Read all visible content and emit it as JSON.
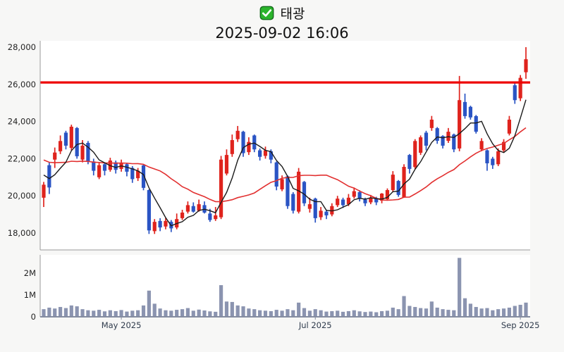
{
  "title": {
    "checkbox_icon": "white-check-on-green",
    "checkbox_green": "#2bb42c",
    "stock_name": "태광",
    "datetime": "2025-09-02 16:06"
  },
  "chart_data": {
    "type": "candlestick",
    "panels": [
      "price",
      "volume"
    ],
    "grid": "off",
    "price_axis": {
      "ticks": [
        28000,
        26000,
        24000,
        22000,
        20000,
        18000
      ],
      "range": [
        17500,
        28200
      ]
    },
    "volume_axis": {
      "ticks": [
        {
          "label": "2M",
          "value": 2000000
        },
        {
          "label": "1M",
          "value": 1000000
        },
        {
          "label": "0",
          "value": 0
        }
      ]
    },
    "x_ticks": [
      {
        "label": "May 2025",
        "index": 14
      },
      {
        "label": "Jul 2025",
        "index": 49
      },
      {
        "label": "Sep 2025",
        "index": 86
      }
    ],
    "resistance_line": {
      "value": 26100,
      "color": "#ee0000"
    },
    "moving_averages": {
      "short": {
        "window": 5,
        "color": "#1a1a1a"
      },
      "long": {
        "window": 20,
        "color": "#e23030"
      },
      "prior_closes": [
        23000,
        22900,
        22800,
        22700,
        22600,
        22500,
        22400,
        22300,
        22200,
        22100,
        22000,
        21900,
        21800,
        21700,
        21600,
        21500,
        21400,
        21300,
        21200,
        21100
      ]
    },
    "colors": {
      "up": "#df231d",
      "down": "#2a54c4",
      "volume": "#8b94b0",
      "axis": "#9a9a9a",
      "label": "#2f3b4c"
    },
    "candles_format": [
      "open",
      "high",
      "low",
      "close",
      "volume"
    ],
    "candles": [
      [
        19900,
        20750,
        19400,
        20600,
        350000
      ],
      [
        21650,
        21800,
        20100,
        20450,
        420000
      ],
      [
        21950,
        22600,
        21500,
        22330,
        380000
      ],
      [
        22400,
        23250,
        22250,
        22950,
        450000
      ],
      [
        23400,
        23500,
        22500,
        22700,
        400000
      ],
      [
        22580,
        23830,
        22450,
        23720,
        520000
      ],
      [
        23650,
        23700,
        22000,
        22130,
        480000
      ],
      [
        21950,
        23000,
        21800,
        22700,
        350000
      ],
      [
        22850,
        22950,
        21700,
        21850,
        300000
      ],
      [
        21850,
        22000,
        21100,
        21350,
        280000
      ],
      [
        21000,
        21800,
        20900,
        21650,
        320000
      ],
      [
        21700,
        21800,
        21100,
        21350,
        250000
      ],
      [
        21400,
        22050,
        21300,
        21900,
        300000
      ],
      [
        21800,
        21900,
        21200,
        21400,
        260000
      ],
      [
        21450,
        21950,
        21300,
        21750,
        310000
      ],
      [
        21700,
        21750,
        21050,
        21300,
        240000
      ],
      [
        21500,
        21600,
        20700,
        20900,
        280000
      ],
      [
        20950,
        21500,
        20800,
        21350,
        300000
      ],
      [
        21640,
        21700,
        20300,
        20430,
        520000
      ],
      [
        20310,
        20350,
        17950,
        18140,
        1200000
      ],
      [
        18100,
        18750,
        17950,
        18600,
        600000
      ],
      [
        18650,
        18800,
        18100,
        18300,
        380000
      ],
      [
        18350,
        18800,
        18200,
        18650,
        300000
      ],
      [
        18600,
        18700,
        18050,
        18250,
        280000
      ],
      [
        18300,
        19050,
        18200,
        18750,
        320000
      ],
      [
        18800,
        19250,
        18700,
        19100,
        350000
      ],
      [
        19150,
        19700,
        19050,
        19500,
        400000
      ],
      [
        19450,
        19650,
        19100,
        19150,
        280000
      ],
      [
        19200,
        19800,
        19150,
        19550,
        330000
      ],
      [
        19500,
        19700,
        19050,
        19100,
        290000
      ],
      [
        19050,
        19300,
        18600,
        18700,
        250000
      ],
      [
        18750,
        19400,
        18650,
        18950,
        230000
      ],
      [
        18850,
        22150,
        18750,
        21950,
        1450000
      ],
      [
        21200,
        22500,
        21100,
        22200,
        700000
      ],
      [
        22250,
        23300,
        22100,
        23000,
        680000
      ],
      [
        23050,
        23760,
        22900,
        23500,
        520000
      ],
      [
        23450,
        23500,
        22100,
        22300,
        480000
      ],
      [
        22350,
        23150,
        22200,
        22900,
        380000
      ],
      [
        23250,
        23300,
        22350,
        22500,
        350000
      ],
      [
        22450,
        22550,
        21900,
        22100,
        300000
      ],
      [
        22150,
        22650,
        22000,
        22450,
        280000
      ],
      [
        22400,
        22500,
        21750,
        21950,
        260000
      ],
      [
        21800,
        21850,
        20300,
        20500,
        320000
      ],
      [
        20350,
        21100,
        20250,
        20900,
        280000
      ],
      [
        21050,
        21100,
        19300,
        19450,
        350000
      ],
      [
        20100,
        20200,
        19050,
        19200,
        300000
      ],
      [
        19150,
        21500,
        19050,
        21300,
        650000
      ],
      [
        20750,
        20800,
        19450,
        19600,
        400000
      ],
      [
        19300,
        19900,
        19100,
        19550,
        280000
      ],
      [
        19850,
        19900,
        18560,
        18800,
        350000
      ],
      [
        18850,
        19400,
        18700,
        19200,
        300000
      ],
      [
        19150,
        19250,
        18750,
        18950,
        240000
      ],
      [
        19000,
        19600,
        18900,
        19450,
        260000
      ],
      [
        19500,
        20000,
        19400,
        19850,
        280000
      ],
      [
        19800,
        19900,
        19350,
        19500,
        230000
      ],
      [
        19550,
        20100,
        19450,
        19900,
        260000
      ],
      [
        19950,
        20450,
        19850,
        20250,
        300000
      ],
      [
        20200,
        20300,
        19700,
        19850,
        250000
      ],
      [
        19800,
        19900,
        19450,
        19600,
        220000
      ],
      [
        19650,
        20050,
        19550,
        19900,
        240000
      ],
      [
        19850,
        19950,
        19500,
        19650,
        210000
      ],
      [
        19740,
        20150,
        19600,
        20120,
        260000
      ],
      [
        19820,
        20400,
        19750,
        20310,
        280000
      ],
      [
        20310,
        21330,
        20200,
        21140,
        420000
      ],
      [
        20800,
        20850,
        19950,
        20050,
        350000
      ],
      [
        19930,
        21700,
        19900,
        21560,
        950000
      ],
      [
        22200,
        22250,
        21200,
        21450,
        500000
      ],
      [
        21550,
        23050,
        21450,
        22950,
        450000
      ],
      [
        22320,
        23250,
        22200,
        23150,
        400000
      ],
      [
        23400,
        23500,
        22450,
        22700,
        380000
      ],
      [
        23650,
        24300,
        23500,
        24100,
        700000
      ],
      [
        23640,
        23700,
        22800,
        22960,
        420000
      ],
      [
        23220,
        23260,
        22550,
        22700,
        350000
      ],
      [
        22960,
        23650,
        22850,
        23450,
        320000
      ],
      [
        23300,
        23350,
        22350,
        22500,
        300000
      ],
      [
        22550,
        26450,
        22400,
        25150,
        2700000
      ],
      [
        25050,
        25500,
        24150,
        24290,
        850000
      ],
      [
        24790,
        24850,
        24100,
        24220,
        600000
      ],
      [
        24290,
        24350,
        23350,
        23450,
        450000
      ],
      [
        22500,
        23100,
        22400,
        22950,
        380000
      ],
      [
        22450,
        22500,
        21350,
        21750,
        400000
      ],
      [
        22000,
        22100,
        21450,
        21650,
        300000
      ],
      [
        21700,
        22550,
        21600,
        22400,
        350000
      ],
      [
        22450,
        23050,
        22350,
        22900,
        380000
      ],
      [
        23350,
        24300,
        23250,
        24100,
        420000
      ],
      [
        25950,
        26050,
        24950,
        25150,
        500000
      ],
      [
        25250,
        26500,
        25100,
        26350,
        550000
      ],
      [
        26650,
        28000,
        26300,
        27350,
        650000
      ]
    ]
  }
}
